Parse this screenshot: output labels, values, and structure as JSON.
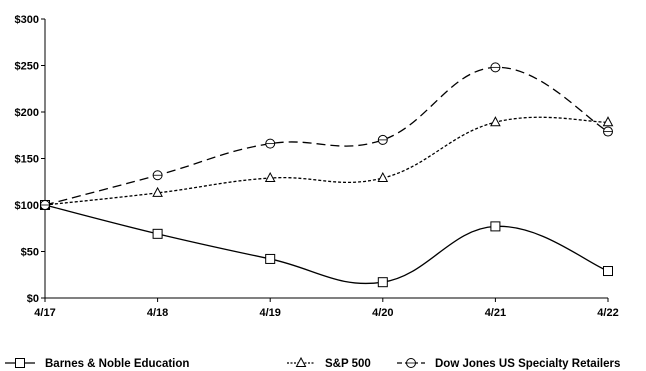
{
  "chart_data": {
    "type": "line",
    "categories": [
      "4/17",
      "4/18",
      "4/19",
      "4/20",
      "4/21",
      "4/22"
    ],
    "ylim": [
      0,
      300
    ],
    "yticks": [
      "$0",
      "$50",
      "$100",
      "$150",
      "$200",
      "$250",
      "$300"
    ],
    "grid": false,
    "legend_position": "bottom",
    "series": [
      {
        "name": "Barnes & Noble Education",
        "marker": "square",
        "dash": "solid",
        "values": [
          100,
          69,
          42,
          17,
          77,
          29
        ]
      },
      {
        "name": "S&P 500",
        "marker": "triangle",
        "dash": "dotted",
        "values": [
          100,
          113,
          129,
          129,
          189,
          189
        ]
      },
      {
        "name": "Dow Jones US Specialty Retailers",
        "marker": "circle",
        "dash": "dashed",
        "values": [
          100,
          132,
          166,
          170,
          248,
          179
        ]
      }
    ]
  }
}
